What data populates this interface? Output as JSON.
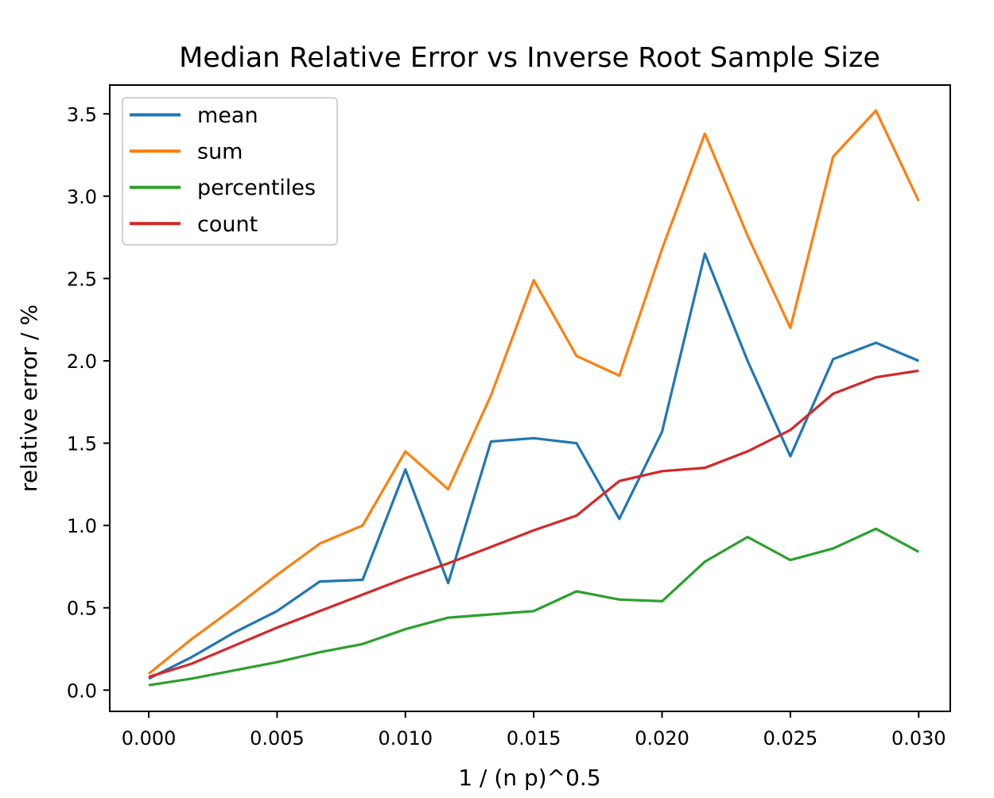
{
  "figure": {
    "title": "Median Relative Error vs Inverse Root Sample Size",
    "xlabel": "1 / (n p)^0.5",
    "ylabel": "relative error / %"
  },
  "legend": {
    "position": "upper left",
    "entries": [
      "mean",
      "sum",
      "percentiles",
      "count"
    ]
  },
  "colors": {
    "mean": "#1f77b4",
    "sum": "#ff7f0e",
    "percentiles": "#2ca02c",
    "count": "#d62728",
    "spine": "#000000",
    "legend_border": "#cccccc",
    "background": "#ffffff"
  },
  "chart_data": {
    "type": "line",
    "title": "Median Relative Error vs Inverse Root Sample Size",
    "xlabel": "1 / (n p)^0.5",
    "ylabel": "relative error / %",
    "grid": false,
    "legend_position": "upper left",
    "xlim": [
      -0.00152,
      0.03123
    ],
    "ylim": [
      -0.129,
      3.675
    ],
    "x_ticks": {
      "values": [
        0.0,
        0.005,
        0.01,
        0.015,
        0.02,
        0.025,
        0.03
      ],
      "labels": [
        "0.000",
        "0.005",
        "0.010",
        "0.015",
        "0.020",
        "0.025",
        "0.030"
      ]
    },
    "y_ticks": {
      "values": [
        0.0,
        0.5,
        1.0,
        1.5,
        2.0,
        2.5,
        3.0,
        3.5
      ],
      "labels": [
        "0.0",
        "0.5",
        "1.0",
        "1.5",
        "2.0",
        "2.5",
        "3.0",
        "3.5"
      ]
    },
    "x": [
      0.0,
      0.001667,
      0.003333,
      0.005,
      0.006667,
      0.008333,
      0.01,
      0.011667,
      0.013333,
      0.015,
      0.016667,
      0.018333,
      0.02,
      0.021667,
      0.023333,
      0.025,
      0.026667,
      0.028333,
      0.03
    ],
    "series": [
      {
        "name": "mean",
        "color": "#1f77b4",
        "values": [
          0.07,
          0.2,
          0.35,
          0.48,
          0.66,
          0.67,
          1.34,
          0.65,
          1.51,
          1.53,
          1.5,
          1.04,
          1.57,
          2.65,
          2.0,
          1.42,
          2.01,
          2.11,
          2.0
        ]
      },
      {
        "name": "sum",
        "color": "#ff7f0e",
        "values": [
          0.1,
          0.31,
          0.5,
          0.7,
          0.89,
          1.0,
          1.45,
          1.22,
          1.79,
          2.49,
          2.03,
          1.91,
          2.68,
          3.38,
          2.76,
          2.2,
          3.24,
          3.52,
          2.97
        ]
      },
      {
        "name": "percentiles",
        "color": "#2ca02c",
        "values": [
          0.03,
          0.07,
          0.12,
          0.17,
          0.23,
          0.28,
          0.37,
          0.44,
          0.46,
          0.48,
          0.6,
          0.55,
          0.54,
          0.78,
          0.93,
          0.79,
          0.86,
          0.98,
          0.84
        ]
      },
      {
        "name": "count",
        "color": "#d62728",
        "values": [
          0.08,
          0.16,
          0.27,
          0.38,
          0.48,
          0.58,
          0.68,
          0.77,
          0.87,
          0.97,
          1.06,
          1.27,
          1.33,
          1.35,
          1.45,
          1.58,
          1.8,
          1.9,
          1.94
        ]
      }
    ]
  }
}
